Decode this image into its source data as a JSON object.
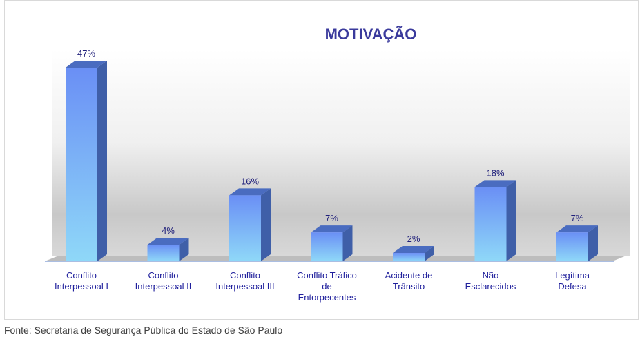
{
  "chart_data": {
    "type": "bar",
    "title": "MOTIVAÇÃO",
    "categories": [
      [
        "Conflito",
        "Interpessoal I"
      ],
      [
        "Conflito",
        "Interpessoal II"
      ],
      [
        "Conflito",
        "Interpessoal III"
      ],
      [
        "Conflito Tráfico",
        "de",
        "Entorpecentes"
      ],
      [
        "Acidente de",
        "Trânsito"
      ],
      [
        "Não",
        "Esclarecidos"
      ],
      [
        "Legítima",
        "Defesa"
      ]
    ],
    "values": [
      47,
      4,
      16,
      7,
      2,
      18,
      7
    ],
    "value_labels": [
      "47%",
      "4%",
      "16%",
      "7%",
      "2%",
      "18%",
      "7%"
    ],
    "unit": "%",
    "ylim": [
      0,
      50
    ],
    "grid": false,
    "legend": "none",
    "colors": {
      "bar_top": "#6a8ff5",
      "bar_bottom": "#8fd8f8",
      "bar_side": "#3f5fa8",
      "bar_cap": "#4a6cc0",
      "title": "#3a3a9c",
      "label": "#1f1f9c"
    }
  },
  "source": "Fonte: Secretaria de Segurança Pública do Estado de São Paulo"
}
